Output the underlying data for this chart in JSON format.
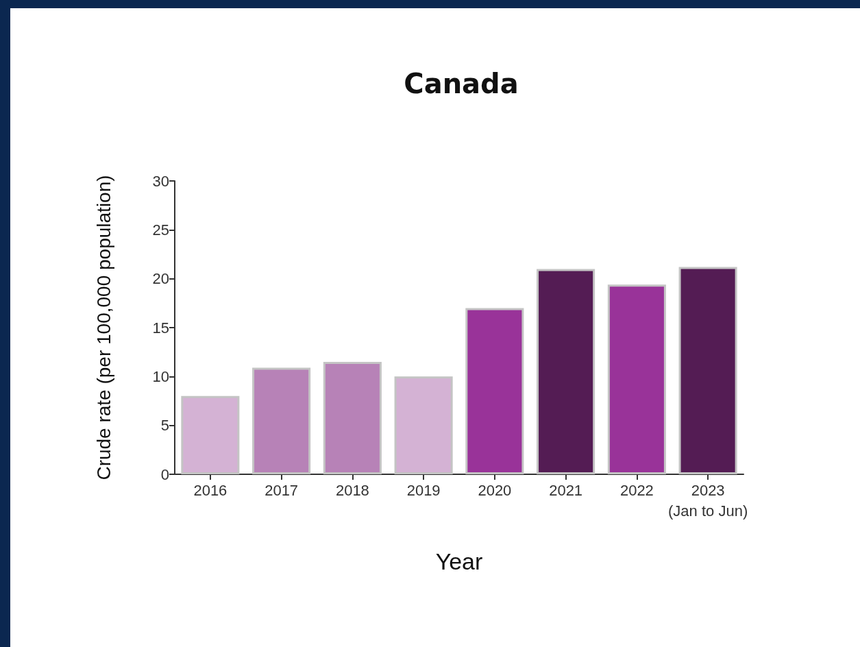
{
  "chart_data": {
    "type": "bar",
    "title": "Canada",
    "xlabel": "Year",
    "ylabel": "Crude rate (per 100,000 population)",
    "categories": [
      "2016",
      "2017",
      "2018",
      "2019",
      "2020",
      "2021",
      "2022",
      "2023\n(Jan to Jun)"
    ],
    "values": [
      8.0,
      10.9,
      11.5,
      10.0,
      17.0,
      21.0,
      19.4,
      21.2
    ],
    "colors": [
      "#d4b2d4",
      "#b782b7",
      "#b782b7",
      "#d4b2d4",
      "#993399",
      "#541c54",
      "#993399",
      "#541c54"
    ],
    "ylim": [
      0,
      30
    ],
    "yticks": [
      0,
      5,
      10,
      15,
      20,
      25,
      30
    ],
    "grid": false
  }
}
